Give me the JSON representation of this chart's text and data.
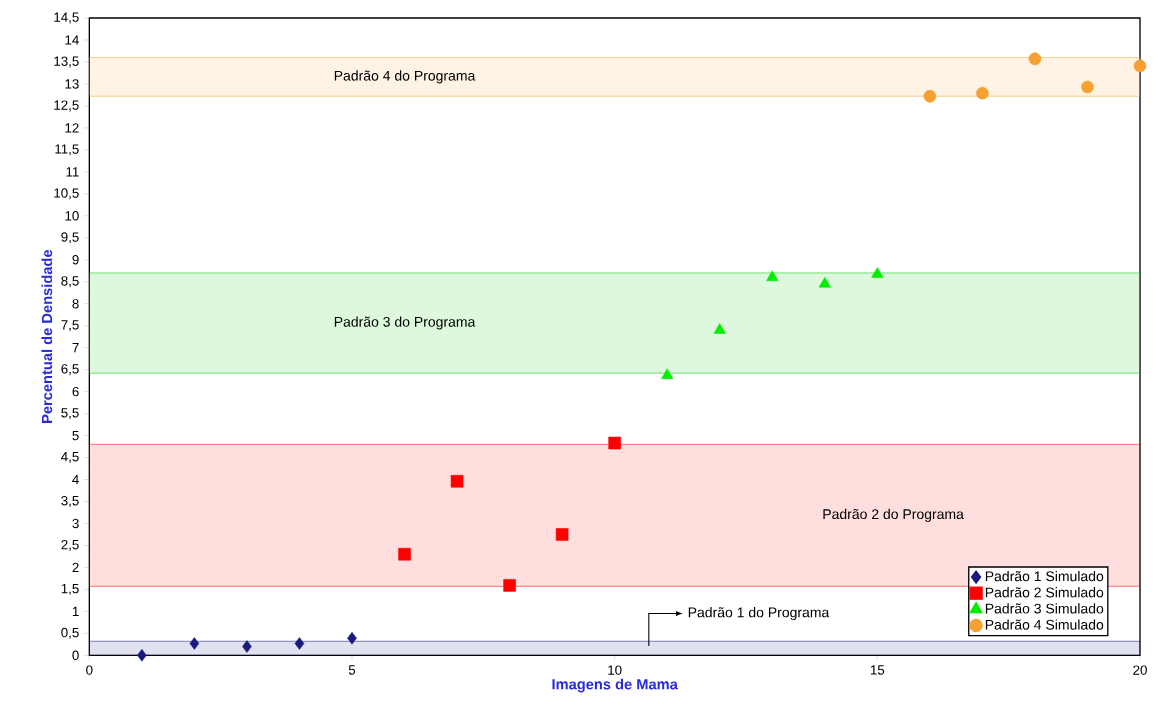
{
  "chart_data": {
    "type": "scatter",
    "xlabel": "Imagens de Mama",
    "ylabel": "Percentual de Densidade",
    "xlim": [
      0,
      20
    ],
    "ylim": [
      0,
      14.5
    ],
    "xticks": [
      0,
      5,
      10,
      15,
      20
    ],
    "yticks": [
      0,
      {
        "value": 0.5,
        "label": "0,5"
      },
      1,
      {
        "value": 1.5,
        "label": "1,5"
      },
      2,
      {
        "value": 2.5,
        "label": "2,5"
      },
      3,
      {
        "value": 3.5,
        "label": "3,5"
      },
      4,
      {
        "value": 4.5,
        "label": "4,5"
      },
      5,
      {
        "value": 5.5,
        "label": "5,5"
      },
      6,
      {
        "value": 6.5,
        "label": "6,5"
      },
      7,
      {
        "value": 7.5,
        "label": "7,5"
      },
      8,
      {
        "value": 8.5,
        "label": "8,5"
      },
      9,
      {
        "value": 9.5,
        "label": "9,5"
      },
      10,
      {
        "value": 10.5,
        "label": "10,5"
      },
      11,
      {
        "value": 11.5,
        "label": "11,5"
      },
      12,
      {
        "value": 12.5,
        "label": "12,5"
      },
      13,
      {
        "value": 13.5,
        "label": "13,5"
      },
      14,
      {
        "value": 14.5,
        "label": "14,5"
      }
    ],
    "grid": false,
    "legend": "bottom right",
    "series": [
      {
        "name": "Padrão 1 Simulado",
        "color": "#1a1a80",
        "marker": "diamond",
        "x": [
          1,
          2,
          3,
          4,
          5
        ],
        "values": [
          0,
          0.27,
          0.2,
          0.27,
          0.39
        ]
      },
      {
        "name": "Padrão 2 Simulado",
        "color": "#ff0000",
        "marker": "square",
        "x": [
          6,
          7,
          8,
          9,
          10
        ],
        "values": [
          2.3,
          3.96,
          1.59,
          2.75,
          4.83
        ]
      },
      {
        "name": "Padrão 3 Simulado",
        "color": "#00ee00",
        "marker": "triangle",
        "x": [
          11,
          12,
          13,
          14,
          15
        ],
        "values": [
          6.37,
          7.4,
          8.6,
          8.45,
          8.67
        ]
      },
      {
        "name": "Padrão 4 Simulado",
        "color": "#f5a030",
        "marker": "circle",
        "x": [
          16,
          17,
          18,
          19,
          20
        ],
        "values": [
          12.72,
          12.79,
          13.57,
          12.93,
          13.41
        ]
      }
    ],
    "bands": [
      {
        "axis": "y",
        "from": 0,
        "to": 0.32,
        "label": "Padrão 1 do Programa",
        "color": "#1a1a80"
      },
      {
        "axis": "y",
        "from": 1.57,
        "to": 4.8,
        "label": "Padrão 2 do Programa",
        "color": "#ff0000"
      },
      {
        "axis": "y",
        "from": 6.42,
        "to": 8.7,
        "label": "Padrão 3 do Programa",
        "color": "#00cc00"
      },
      {
        "axis": "y",
        "from": 12.72,
        "to": 13.6,
        "label": "Padrão 4 do Programa",
        "color": "#f5a030"
      }
    ]
  }
}
